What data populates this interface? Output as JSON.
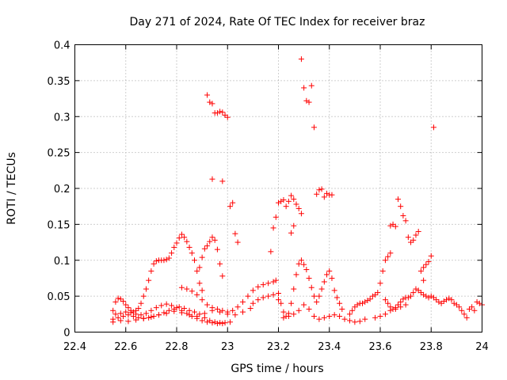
{
  "chart_data": {
    "type": "scatter",
    "title": "Day 271 of 2024, Rate Of TEC Index for receiver braz",
    "xlabel": "GPS time / hours",
    "ylabel": "ROTI / TECUs",
    "xlim": [
      22.4,
      24
    ],
    "ylim": [
      0,
      0.4
    ],
    "xticks": [
      "22.4",
      "22.6",
      "22.8",
      "23",
      "23.2",
      "23.4",
      "23.6",
      "23.8",
      "24"
    ],
    "yticks": [
      "0",
      "0.05",
      "0.1",
      "0.15",
      "0.2",
      "0.25",
      "0.3",
      "0.35",
      "0.4"
    ],
    "grid": true,
    "marker": "+",
    "color": "#ff0000",
    "series": [
      {
        "points": [
          [
            22.55,
            0.03
          ],
          [
            22.56,
            0.042
          ],
          [
            22.57,
            0.047
          ],
          [
            22.58,
            0.046
          ],
          [
            22.59,
            0.043
          ],
          [
            22.6,
            0.038
          ],
          [
            22.61,
            0.034
          ],
          [
            22.62,
            0.03
          ],
          [
            22.63,
            0.028
          ],
          [
            22.64,
            0.03
          ],
          [
            22.65,
            0.033
          ],
          [
            22.66,
            0.04
          ],
          [
            22.67,
            0.05
          ],
          [
            22.68,
            0.06
          ],
          [
            22.69,
            0.072
          ],
          [
            22.7,
            0.085
          ],
          [
            22.71,
            0.095
          ],
          [
            22.72,
            0.099
          ],
          [
            22.73,
            0.1
          ],
          [
            22.74,
            0.1
          ],
          [
            22.75,
            0.1
          ],
          [
            22.76,
            0.101
          ],
          [
            22.77,
            0.103
          ],
          [
            22.78,
            0.11
          ],
          [
            22.79,
            0.118
          ],
          [
            22.8,
            0.124
          ],
          [
            22.81,
            0.131
          ],
          [
            22.82,
            0.136
          ],
          [
            22.83,
            0.132
          ],
          [
            22.84,
            0.126
          ],
          [
            22.85,
            0.118
          ],
          [
            22.86,
            0.11
          ],
          [
            22.87,
            0.1
          ],
          [
            22.88,
            0.085
          ],
          [
            22.89,
            0.068
          ],
          [
            22.9,
            0.058
          ],
          [
            22.55,
            0.018
          ],
          [
            22.57,
            0.02
          ],
          [
            22.59,
            0.022
          ],
          [
            22.61,
            0.024
          ],
          [
            22.63,
            0.022
          ],
          [
            22.65,
            0.02
          ],
          [
            22.67,
            0.019
          ],
          [
            22.69,
            0.02
          ],
          [
            22.71,
            0.022
          ],
          [
            22.73,
            0.024
          ],
          [
            22.75,
            0.027
          ],
          [
            22.77,
            0.03
          ],
          [
            22.79,
            0.032
          ],
          [
            22.81,
            0.035
          ],
          [
            22.83,
            0.033
          ],
          [
            22.85,
            0.03
          ],
          [
            22.87,
            0.028
          ],
          [
            22.89,
            0.025
          ],
          [
            22.91,
            0.02
          ],
          [
            22.93,
            0.016
          ],
          [
            22.95,
            0.014
          ],
          [
            22.97,
            0.013
          ],
          [
            22.99,
            0.013
          ],
          [
            23.01,
            0.014
          ],
          [
            22.56,
            0.025
          ],
          [
            22.58,
            0.026
          ],
          [
            22.6,
            0.028
          ],
          [
            22.62,
            0.027
          ],
          [
            22.64,
            0.025
          ],
          [
            22.66,
            0.024
          ],
          [
            22.68,
            0.026
          ],
          [
            22.7,
            0.03
          ],
          [
            22.72,
            0.034
          ],
          [
            22.74,
            0.037
          ],
          [
            22.76,
            0.039
          ],
          [
            22.78,
            0.037
          ],
          [
            22.8,
            0.034
          ],
          [
            22.82,
            0.03
          ],
          [
            22.84,
            0.026
          ],
          [
            22.86,
            0.022
          ],
          [
            22.88,
            0.019
          ],
          [
            22.9,
            0.016
          ],
          [
            22.92,
            0.014
          ],
          [
            22.94,
            0.013
          ],
          [
            22.96,
            0.012
          ],
          [
            22.98,
            0.012
          ],
          [
            22.55,
            0.014
          ],
          [
            22.58,
            0.016
          ],
          [
            22.61,
            0.015
          ],
          [
            22.64,
            0.017
          ],
          [
            22.67,
            0.019
          ],
          [
            22.7,
            0.021
          ],
          [
            22.73,
            0.024
          ],
          [
            22.76,
            0.026
          ],
          [
            22.79,
            0.029
          ],
          [
            22.82,
            0.027
          ],
          [
            22.85,
            0.024
          ],
          [
            22.88,
            0.022
          ],
          [
            22.91,
            0.026
          ],
          [
            22.94,
            0.03
          ],
          [
            22.97,
            0.028
          ],
          [
            23.0,
            0.025
          ],
          [
            23.03,
            0.024
          ],
          [
            23.06,
            0.028
          ],
          [
            23.09,
            0.033
          ],
          [
            22.82,
            0.062
          ],
          [
            22.84,
            0.06
          ],
          [
            22.86,
            0.057
          ],
          [
            22.88,
            0.052
          ],
          [
            22.9,
            0.045
          ],
          [
            22.92,
            0.038
          ],
          [
            22.94,
            0.034
          ],
          [
            22.96,
            0.032
          ],
          [
            22.98,
            0.03
          ],
          [
            23.0,
            0.028
          ],
          [
            23.02,
            0.03
          ],
          [
            23.04,
            0.035
          ],
          [
            23.06,
            0.042
          ],
          [
            23.08,
            0.05
          ],
          [
            23.1,
            0.058
          ],
          [
            23.12,
            0.063
          ],
          [
            23.14,
            0.066
          ],
          [
            23.16,
            0.068
          ],
          [
            23.18,
            0.07
          ],
          [
            23.19,
            0.072
          ],
          [
            22.89,
            0.09
          ],
          [
            22.9,
            0.104
          ],
          [
            22.91,
            0.116
          ],
          [
            22.92,
            0.12
          ],
          [
            22.93,
            0.126
          ],
          [
            22.94,
            0.132
          ],
          [
            22.95,
            0.128
          ],
          [
            22.96,
            0.115
          ],
          [
            22.97,
            0.095
          ],
          [
            22.98,
            0.078
          ],
          [
            22.92,
            0.33
          ],
          [
            22.93,
            0.32
          ],
          [
            22.94,
            0.318
          ],
          [
            22.95,
            0.305
          ],
          [
            22.96,
            0.305
          ],
          [
            22.97,
            0.307
          ],
          [
            22.98,
            0.306
          ],
          [
            22.99,
            0.302
          ],
          [
            23.0,
            0.299
          ],
          [
            22.94,
            0.213
          ],
          [
            22.98,
            0.21
          ],
          [
            23.02,
            0.18
          ],
          [
            23.01,
            0.175
          ],
          [
            23.03,
            0.137
          ],
          [
            23.04,
            0.125
          ],
          [
            23.17,
            0.112
          ],
          [
            23.18,
            0.145
          ],
          [
            23.19,
            0.16
          ],
          [
            23.2,
            0.18
          ],
          [
            23.21,
            0.182
          ],
          [
            23.22,
            0.184
          ],
          [
            23.23,
            0.175
          ],
          [
            23.24,
            0.182
          ],
          [
            23.25,
            0.19
          ],
          [
            23.26,
            0.185
          ],
          [
            23.27,
            0.178
          ],
          [
            23.28,
            0.172
          ],
          [
            23.29,
            0.165
          ],
          [
            23.26,
            0.148
          ],
          [
            23.25,
            0.138
          ],
          [
            23.29,
            0.38
          ],
          [
            23.3,
            0.34
          ],
          [
            23.31,
            0.322
          ],
          [
            23.32,
            0.32
          ],
          [
            23.33,
            0.343
          ],
          [
            23.34,
            0.285
          ],
          [
            23.35,
            0.192
          ],
          [
            23.36,
            0.198
          ],
          [
            23.37,
            0.199
          ],
          [
            23.38,
            0.188
          ],
          [
            23.39,
            0.193
          ],
          [
            23.4,
            0.191
          ],
          [
            23.41,
            0.191
          ],
          [
            23.2,
            0.045
          ],
          [
            23.21,
            0.04
          ],
          [
            23.22,
            0.028
          ],
          [
            23.23,
            0.022
          ],
          [
            23.24,
            0.026
          ],
          [
            23.25,
            0.04
          ],
          [
            23.26,
            0.06
          ],
          [
            23.27,
            0.08
          ],
          [
            23.28,
            0.095
          ],
          [
            23.29,
            0.1
          ],
          [
            23.3,
            0.094
          ],
          [
            23.31,
            0.087
          ],
          [
            23.32,
            0.075
          ],
          [
            23.33,
            0.062
          ],
          [
            23.34,
            0.05
          ],
          [
            23.35,
            0.042
          ],
          [
            23.36,
            0.05
          ],
          [
            23.37,
            0.06
          ],
          [
            23.38,
            0.07
          ],
          [
            23.39,
            0.08
          ],
          [
            23.4,
            0.085
          ],
          [
            23.41,
            0.075
          ],
          [
            23.42,
            0.058
          ],
          [
            23.43,
            0.048
          ],
          [
            23.44,
            0.04
          ],
          [
            23.45,
            0.032
          ],
          [
            23.22,
            0.02
          ],
          [
            23.24,
            0.022
          ],
          [
            23.26,
            0.025
          ],
          [
            23.28,
            0.03
          ],
          [
            23.3,
            0.038
          ],
          [
            23.32,
            0.032
          ],
          [
            23.34,
            0.022
          ],
          [
            23.36,
            0.018
          ],
          [
            23.38,
            0.02
          ],
          [
            23.4,
            0.022
          ],
          [
            23.42,
            0.024
          ],
          [
            23.44,
            0.022
          ],
          [
            23.46,
            0.018
          ],
          [
            23.48,
            0.016
          ],
          [
            23.5,
            0.014
          ],
          [
            23.52,
            0.015
          ],
          [
            23.54,
            0.018
          ],
          [
            23.1,
            0.04
          ],
          [
            23.12,
            0.045
          ],
          [
            23.14,
            0.048
          ],
          [
            23.16,
            0.05
          ],
          [
            23.18,
            0.052
          ],
          [
            23.2,
            0.054
          ],
          [
            23.48,
            0.025
          ],
          [
            23.49,
            0.03
          ],
          [
            23.5,
            0.035
          ],
          [
            23.51,
            0.038
          ],
          [
            23.52,
            0.04
          ],
          [
            23.53,
            0.04
          ],
          [
            23.54,
            0.042
          ],
          [
            23.55,
            0.044
          ],
          [
            23.56,
            0.046
          ],
          [
            23.57,
            0.05
          ],
          [
            23.58,
            0.052
          ],
          [
            23.59,
            0.055
          ],
          [
            23.6,
            0.068
          ],
          [
            23.61,
            0.085
          ],
          [
            23.62,
            0.1
          ],
          [
            23.63,
            0.105
          ],
          [
            23.64,
            0.11
          ],
          [
            23.62,
            0.045
          ],
          [
            23.63,
            0.04
          ],
          [
            23.64,
            0.035
          ],
          [
            23.65,
            0.032
          ],
          [
            23.66,
            0.034
          ],
          [
            23.67,
            0.038
          ],
          [
            23.68,
            0.042
          ],
          [
            23.69,
            0.046
          ],
          [
            23.7,
            0.048
          ],
          [
            23.71,
            0.048
          ],
          [
            23.72,
            0.05
          ],
          [
            23.73,
            0.055
          ],
          [
            23.74,
            0.06
          ],
          [
            23.75,
            0.058
          ],
          [
            23.76,
            0.055
          ],
          [
            23.77,
            0.052
          ],
          [
            23.78,
            0.05
          ],
          [
            23.79,
            0.048
          ],
          [
            23.8,
            0.05
          ],
          [
            23.81,
            0.048
          ],
          [
            23.82,
            0.045
          ],
          [
            23.83,
            0.042
          ],
          [
            23.84,
            0.04
          ],
          [
            23.85,
            0.043
          ],
          [
            23.86,
            0.045
          ],
          [
            23.87,
            0.047
          ],
          [
            23.88,
            0.045
          ],
          [
            23.89,
            0.04
          ],
          [
            23.9,
            0.038
          ],
          [
            23.91,
            0.035
          ],
          [
            23.92,
            0.03
          ],
          [
            23.93,
            0.025
          ],
          [
            23.94,
            0.02
          ],
          [
            23.95,
            0.032
          ],
          [
            23.96,
            0.035
          ],
          [
            23.97,
            0.03
          ],
          [
            23.98,
            0.042
          ],
          [
            23.99,
            0.04
          ],
          [
            24.0,
            0.038
          ],
          [
            23.64,
            0.148
          ],
          [
            23.65,
            0.15
          ],
          [
            23.66,
            0.147
          ],
          [
            23.67,
            0.185
          ],
          [
            23.68,
            0.175
          ],
          [
            23.69,
            0.162
          ],
          [
            23.7,
            0.155
          ],
          [
            23.71,
            0.132
          ],
          [
            23.72,
            0.125
          ],
          [
            23.73,
            0.128
          ],
          [
            23.74,
            0.135
          ],
          [
            23.75,
            0.14
          ],
          [
            23.76,
            0.085
          ],
          [
            23.77,
            0.09
          ],
          [
            23.78,
            0.094
          ],
          [
            23.79,
            0.098
          ],
          [
            23.8,
            0.106
          ],
          [
            23.81,
            0.285
          ],
          [
            23.77,
            0.072
          ],
          [
            23.58,
            0.02
          ],
          [
            23.6,
            0.022
          ],
          [
            23.62,
            0.025
          ],
          [
            23.64,
            0.03
          ],
          [
            23.66,
            0.032
          ],
          [
            23.68,
            0.035
          ],
          [
            23.7,
            0.038
          ]
        ]
      }
    ]
  }
}
